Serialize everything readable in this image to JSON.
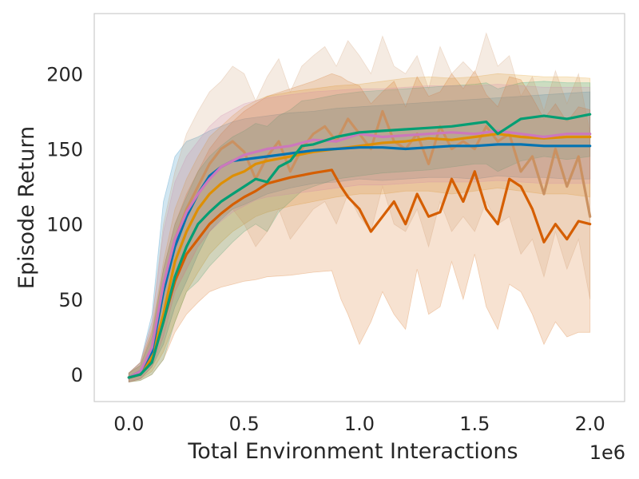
{
  "chart_data": {
    "type": "line",
    "title": "",
    "xlabel": "Total Environment Interactions",
    "ylabel": "Episode Return",
    "x_offset_label": "1e6",
    "xlim": [
      -0.15,
      2.15
    ],
    "ylim": [
      -18,
      240
    ],
    "xticks": [
      0.0,
      0.5,
      1.0,
      1.5,
      2.0
    ],
    "xtick_labels": [
      "0.0",
      "0.5",
      "1.0",
      "1.5",
      "2.0"
    ],
    "yticks": [
      0,
      50,
      100,
      150,
      200
    ],
    "ytick_labels": [
      "0",
      "50",
      "100",
      "150",
      "200"
    ],
    "grid": false,
    "legend": "none",
    "series": [
      {
        "name": "series-blue",
        "color": "#0173b2",
        "x": [
          0,
          0.05,
          0.1,
          0.15,
          0.2,
          0.25,
          0.3,
          0.35,
          0.4,
          0.45,
          0.5,
          0.6,
          0.7,
          0.8,
          0.9,
          1.0,
          1.1,
          1.2,
          1.3,
          1.4,
          1.5,
          1.6,
          1.7,
          1.8,
          1.9,
          2.0
        ],
        "y": [
          -2,
          2,
          15,
          55,
          85,
          105,
          120,
          132,
          138,
          142,
          143,
          145,
          147,
          149,
          150,
          151,
          151,
          150,
          151,
          152,
          152,
          153,
          153,
          152,
          152,
          152
        ],
        "lower": [
          -5,
          -3,
          5,
          20,
          45,
          62,
          80,
          95,
          103,
          110,
          113,
          120,
          124,
          127,
          128,
          130,
          129,
          130,
          131,
          131,
          130,
          132,
          131,
          131,
          130,
          130
        ],
        "upper": [
          1,
          8,
          40,
          115,
          145,
          155,
          158,
          162,
          165,
          168,
          170,
          172,
          174,
          175,
          177,
          178,
          179,
          180,
          181,
          182,
          183,
          184,
          185,
          186,
          187,
          188
        ]
      },
      {
        "name": "series-orange",
        "color": "#de8f05",
        "x": [
          0,
          0.05,
          0.1,
          0.15,
          0.2,
          0.25,
          0.3,
          0.35,
          0.4,
          0.45,
          0.5,
          0.55,
          0.6,
          0.7,
          0.8,
          0.9,
          1.0,
          1.1,
          1.2,
          1.3,
          1.4,
          1.5,
          1.6,
          1.7,
          1.8,
          1.9,
          2.0
        ],
        "y": [
          -2,
          1,
          12,
          40,
          75,
          95,
          110,
          120,
          127,
          132,
          135,
          140,
          142,
          145,
          148,
          150,
          152,
          154,
          155,
          157,
          156,
          158,
          160,
          158,
          157,
          158,
          158
        ],
        "lower": [
          -5,
          -3,
          2,
          15,
          35,
          55,
          68,
          80,
          88,
          95,
          100,
          105,
          108,
          112,
          115,
          118,
          120,
          120,
          122,
          122,
          120,
          122,
          124,
          122,
          120,
          120,
          118
        ],
        "upper": [
          1,
          8,
          30,
          75,
          110,
          130,
          145,
          158,
          165,
          172,
          178,
          182,
          185,
          188,
          190,
          192,
          193,
          195,
          197,
          198,
          197,
          198,
          200,
          199,
          198,
          198,
          197
        ]
      },
      {
        "name": "series-green",
        "color": "#029e73",
        "x": [
          0,
          0.05,
          0.1,
          0.15,
          0.2,
          0.25,
          0.3,
          0.35,
          0.4,
          0.45,
          0.5,
          0.55,
          0.6,
          0.65,
          0.7,
          0.75,
          0.8,
          0.9,
          1.0,
          1.1,
          1.2,
          1.3,
          1.4,
          1.5,
          1.55,
          1.6,
          1.7,
          1.8,
          1.9,
          2.0
        ],
        "y": [
          -2,
          0,
          8,
          35,
          65,
          85,
          100,
          108,
          115,
          120,
          125,
          130,
          128,
          138,
          142,
          152,
          153,
          158,
          161,
          162,
          163,
          164,
          165,
          167,
          168,
          160,
          170,
          172,
          170,
          173
        ],
        "lower": [
          -5,
          -4,
          0,
          10,
          35,
          55,
          62,
          72,
          80,
          88,
          95,
          100,
          95,
          108,
          115,
          122,
          125,
          130,
          132,
          134,
          135,
          136,
          138,
          140,
          140,
          135,
          142,
          145,
          143,
          145
        ],
        "upper": [
          1,
          6,
          25,
          70,
          100,
          118,
          135,
          145,
          152,
          158,
          162,
          167,
          165,
          172,
          176,
          182,
          183,
          186,
          188,
          189,
          190,
          191,
          192,
          193,
          194,
          190,
          194,
          195,
          194,
          194
        ]
      },
      {
        "name": "series-vermillion",
        "color": "#d55e00",
        "x": [
          0,
          0.05,
          0.1,
          0.15,
          0.2,
          0.25,
          0.3,
          0.35,
          0.4,
          0.45,
          0.5,
          0.55,
          0.6,
          0.7,
          0.8,
          0.88,
          0.92,
          0.95,
          1.0,
          1.05,
          1.1,
          1.15,
          1.2,
          1.25,
          1.3,
          1.35,
          1.4,
          1.45,
          1.5,
          1.55,
          1.6,
          1.65,
          1.7,
          1.75,
          1.8,
          1.85,
          1.9,
          1.95,
          2.0
        ],
        "y": [
          -2,
          0,
          10,
          35,
          62,
          80,
          90,
          100,
          107,
          113,
          118,
          122,
          127,
          131,
          134,
          136,
          125,
          118,
          110,
          95,
          105,
          115,
          100,
          120,
          105,
          108,
          130,
          115,
          135,
          110,
          100,
          130,
          125,
          110,
          88,
          100,
          90,
          102,
          100
        ],
        "lower": [
          -5,
          -4,
          0,
          10,
          28,
          40,
          48,
          55,
          58,
          60,
          62,
          63,
          65,
          66,
          68,
          69,
          50,
          40,
          20,
          35,
          55,
          40,
          30,
          70,
          40,
          45,
          75,
          50,
          80,
          45,
          30,
          60,
          55,
          40,
          20,
          35,
          25,
          28,
          28
        ],
        "upper": [
          1,
          6,
          28,
          70,
          100,
          120,
          135,
          150,
          160,
          168,
          175,
          180,
          185,
          190,
          195,
          200,
          198,
          195,
          192,
          180,
          188,
          195,
          178,
          198,
          185,
          188,
          200,
          190,
          202,
          186,
          178,
          198,
          196,
          184,
          170,
          180,
          168,
          178,
          176
        ]
      },
      {
        "name": "series-pink",
        "color": "#cc78bc",
        "x": [
          0,
          0.05,
          0.1,
          0.15,
          0.2,
          0.25,
          0.3,
          0.35,
          0.4,
          0.45,
          0.5,
          0.55,
          0.6,
          0.7,
          0.8,
          0.9,
          1.0,
          1.1,
          1.2,
          1.3,
          1.4,
          1.5,
          1.6,
          1.7,
          1.8,
          1.9,
          2.0
        ],
        "y": [
          -2,
          2,
          18,
          60,
          90,
          108,
          120,
          130,
          138,
          142,
          146,
          148,
          150,
          152,
          156,
          155,
          160,
          158,
          159,
          160,
          161,
          160,
          162,
          160,
          158,
          160,
          160
        ],
        "lower": [
          -5,
          -3,
          6,
          25,
          55,
          70,
          85,
          95,
          102,
          108,
          112,
          116,
          118,
          120,
          122,
          124,
          126,
          126,
          127,
          128,
          128,
          128,
          129,
          128,
          127,
          127,
          127
        ],
        "upper": [
          1,
          8,
          35,
          95,
          128,
          145,
          155,
          165,
          172,
          176,
          180,
          182,
          184,
          186,
          188,
          189,
          190,
          190,
          191,
          192,
          192,
          192,
          193,
          192,
          191,
          191,
          191
        ]
      },
      {
        "name": "series-brown",
        "color": "#ca9161",
        "x": [
          0,
          0.05,
          0.1,
          0.15,
          0.2,
          0.25,
          0.3,
          0.35,
          0.4,
          0.45,
          0.5,
          0.55,
          0.6,
          0.65,
          0.7,
          0.75,
          0.8,
          0.85,
          0.9,
          0.95,
          1.0,
          1.05,
          1.1,
          1.15,
          1.2,
          1.25,
          1.3,
          1.35,
          1.4,
          1.45,
          1.5,
          1.55,
          1.6,
          1.65,
          1.7,
          1.75,
          1.8,
          1.85,
          1.9,
          1.95,
          2.0
        ],
        "y": [
          -2,
          2,
          15,
          55,
          90,
          110,
          125,
          140,
          150,
          155,
          148,
          130,
          145,
          155,
          135,
          150,
          160,
          165,
          155,
          170,
          160,
          150,
          175,
          155,
          150,
          160,
          140,
          165,
          150,
          155,
          150,
          165,
          155,
          160,
          135,
          145,
          120,
          150,
          125,
          145,
          105
        ],
        "lower": [
          -5,
          -3,
          5,
          25,
          55,
          70,
          85,
          95,
          105,
          110,
          100,
          85,
          95,
          110,
          90,
          100,
          110,
          115,
          100,
          120,
          105,
          95,
          125,
          100,
          95,
          110,
          85,
          115,
          95,
          105,
          95,
          115,
          100,
          105,
          80,
          90,
          65,
          95,
          70,
          90,
          50
        ],
        "upper": [
          1,
          8,
          35,
          100,
          135,
          160,
          175,
          188,
          195,
          205,
          200,
          182,
          198,
          210,
          188,
          205,
          212,
          218,
          205,
          222,
          212,
          200,
          225,
          205,
          200,
          212,
          190,
          218,
          200,
          208,
          200,
          227,
          205,
          212,
          185,
          198,
          175,
          202,
          180,
          200,
          160
        ]
      }
    ]
  }
}
